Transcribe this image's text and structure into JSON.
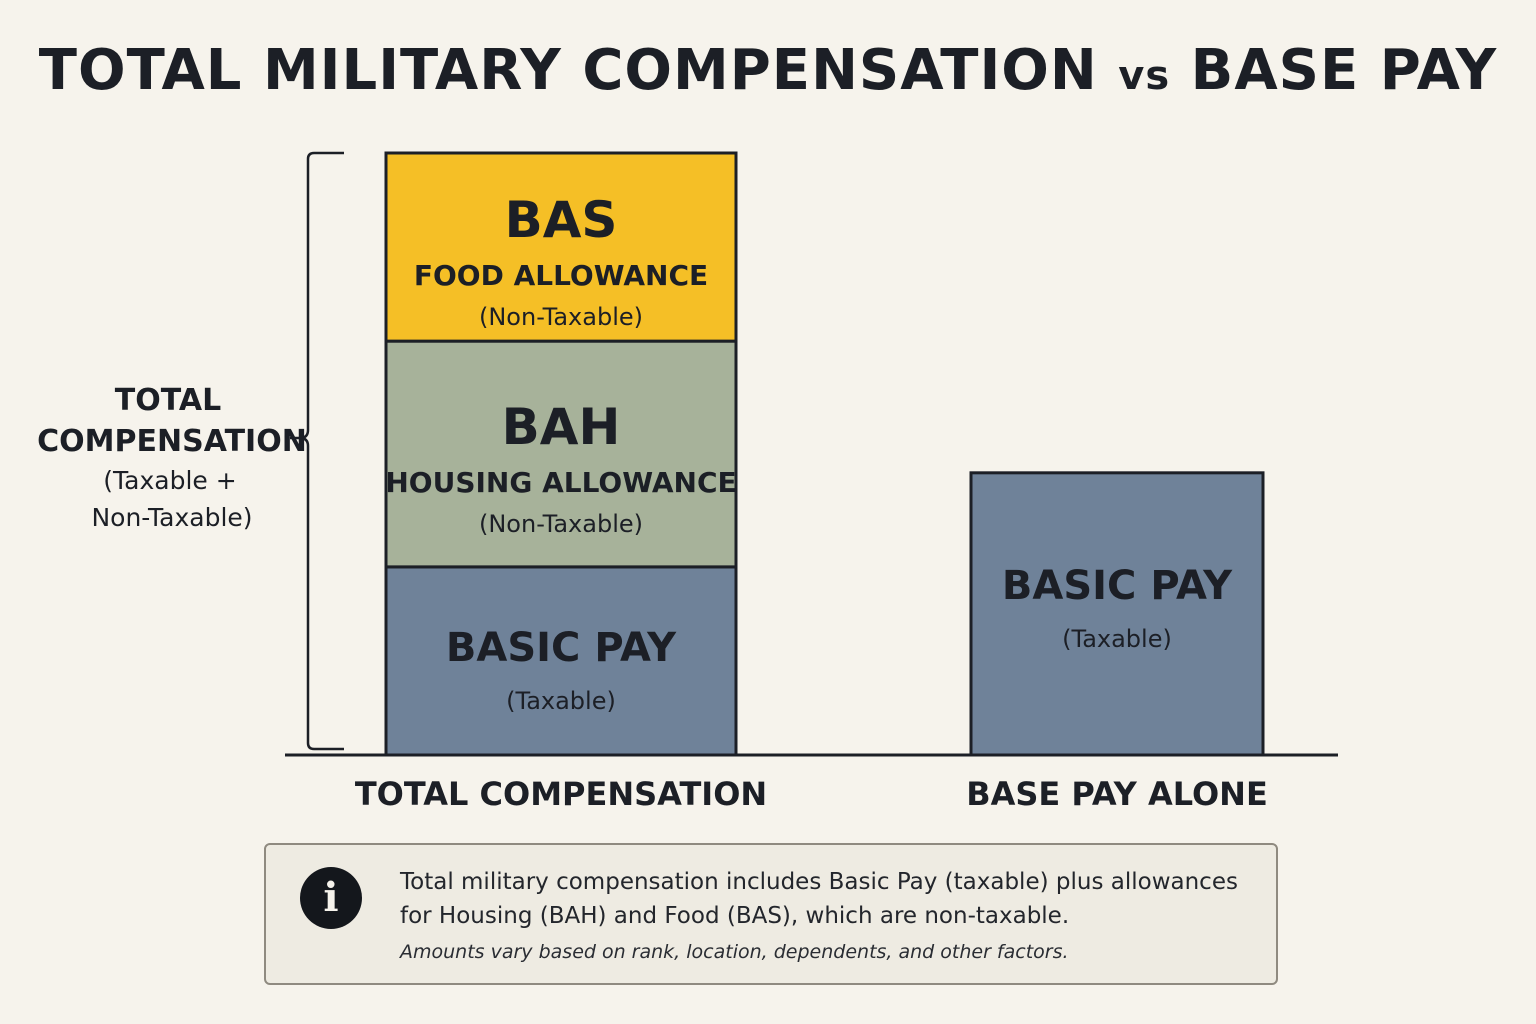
{
  "title": {
    "main_before": "TOTAL MILITARY COMPENSATION",
    "vs": "vs",
    "main_after": "BASE PAY"
  },
  "chart_data": {
    "type": "bar",
    "stacked": true,
    "categories": [
      "TOTAL COMPENSATION",
      "BASE PAY ALONE"
    ],
    "series": [
      {
        "name": "BASIC PAY",
        "sublabel": "(Taxable)",
        "color": "#6f8299",
        "values": [
          1.0,
          1.5
        ]
      },
      {
        "name": "BAH",
        "detail": "HOUSING ALLOWANCE",
        "sublabel": "(Non-Taxable)",
        "color": "#a7b29a",
        "values": [
          1.2,
          0
        ]
      },
      {
        "name": "BAS",
        "detail": "FOOD ALLOWANCE",
        "sublabel": "(Non-Taxable)",
        "color": "#f5bf26",
        "values": [
          1.0,
          0
        ]
      }
    ],
    "bracket_label": {
      "line1": "TOTAL",
      "line2": "COMPENSATION",
      "line3": "(Taxable +",
      "line4": "Non-Taxable)"
    },
    "ylim": [
      0,
      3.2
    ],
    "grid": false,
    "legend": "none",
    "colors": {
      "outline": "#1c1f26",
      "text": "#1c1f26"
    }
  },
  "note": {
    "icon": "info-icon",
    "text": "Total military compensation includes Basic Pay (taxable) plus allowances for Housing (BAH) and Food (BAS), which are non-taxable.",
    "subtext": "Amounts vary based on rank, location, dependents, and other factors."
  }
}
